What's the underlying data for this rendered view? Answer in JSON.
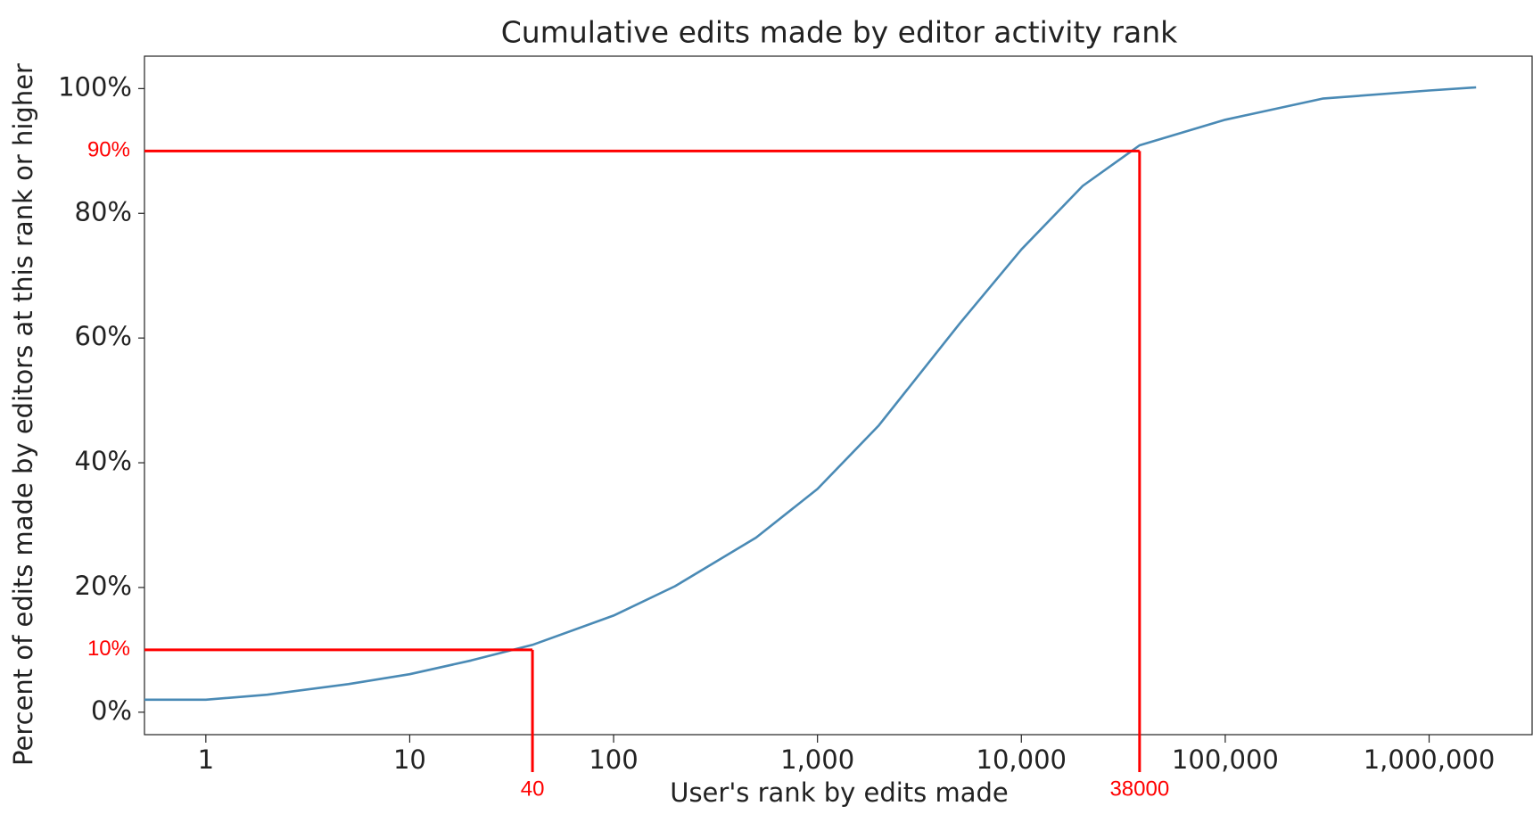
{
  "chart_data": {
    "type": "line",
    "title": "Cumulative edits made by editor activity rank",
    "xlabel": "User's rank by edits made",
    "ylabel": "Percent of edits made by editors at this rank or higher",
    "x": [
      0.5,
      1,
      2,
      5,
      10,
      20,
      40,
      100,
      200,
      500,
      1000,
      2000,
      5000,
      10000,
      20000,
      38000,
      100000,
      300000,
      1000000,
      1700000
    ],
    "values": [
      2.0,
      2.0,
      2.8,
      4.5,
      6.1,
      8.3,
      10.8,
      15.5,
      20.2,
      28,
      35.8,
      46,
      62.4,
      74.2,
      84.4,
      90.9,
      95,
      98.4,
      99.7,
      100.2
    ],
    "color": "#4a8ab5",
    "xscale": "log",
    "xlim": [
      0.5,
      3200000
    ],
    "ylim": [
      -3.6,
      105.2
    ],
    "xticks": [
      1,
      10,
      100,
      {
        "value": 1000,
        "label": "1,000"
      },
      {
        "value": 10000,
        "label": "10,000"
      },
      {
        "value": 100000,
        "label": "100,000"
      },
      {
        "value": 1000000,
        "label": "1,000,000"
      }
    ],
    "yticks": [
      {
        "value": 0,
        "label": "0%"
      },
      {
        "value": 20,
        "label": "20%"
      },
      {
        "value": 40,
        "label": "40%"
      },
      {
        "value": 60,
        "label": "60%"
      },
      {
        "value": 80,
        "label": "80%"
      },
      {
        "value": 100,
        "label": "100%"
      }
    ],
    "annotations": [
      {
        "x": 40,
        "y": {
          "value": 10,
          "label": "10%"
        }
      },
      {
        "x": 38000,
        "y": {
          "value": 90,
          "label": "90%"
        }
      }
    ],
    "annotation_color": "#ff0000"
  }
}
